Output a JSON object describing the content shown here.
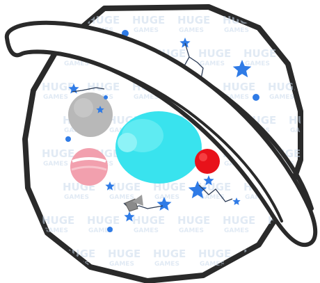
{
  "watermark": {
    "line1": "HUGE",
    "line2": "GAMES"
  },
  "colors": {
    "outline": "#2a2a2a",
    "planet_fill": "#ffffff",
    "star_blue": "#2f7be6",
    "cyan_planet": "#39e3ee",
    "grey_planet": "#b8b8b8",
    "pink_planet": "#f2a0ae",
    "red_planet": "#e8121a",
    "purple_planet": "#6a0ea8",
    "rocket_grey": "#8a8a8a",
    "watermark": "#c9d9ec"
  },
  "icons": [
    "saturn-ring-planet-icon",
    "star-icon",
    "constellation-icon",
    "rocket-icon",
    "planet-icon"
  ]
}
